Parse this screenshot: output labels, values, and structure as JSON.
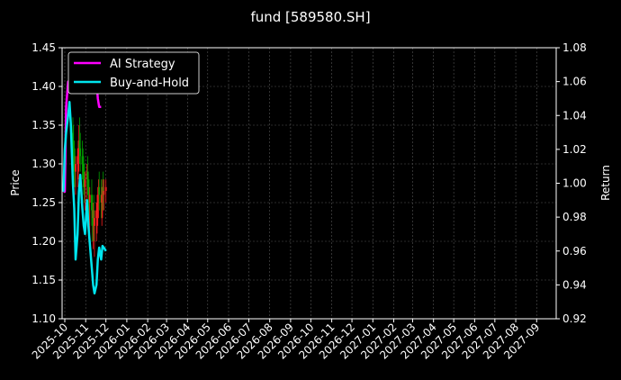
{
  "chart_data": {
    "type": "line",
    "title": "fund [589580.SH]",
    "ylabel": "Price",
    "y2label": "Return",
    "ylim": [
      1.1,
      1.45
    ],
    "y2lim": [
      0.92,
      1.08
    ],
    "xlim": [
      "2025-09-27",
      "2027-09-30"
    ],
    "grid": true,
    "legend_position": "top-left",
    "yticks": [
      "1.10",
      "1.15",
      "1.20",
      "1.25",
      "1.30",
      "1.35",
      "1.40",
      "1.45"
    ],
    "y2ticks": [
      "0.92",
      "0.94",
      "0.96",
      "0.98",
      "1.00",
      "1.02",
      "1.04",
      "1.06",
      "1.08"
    ],
    "xticks": [
      "2025-10",
      "2025-11",
      "2025-12",
      "2026-01",
      "2026-02",
      "2026-03",
      "2026-04",
      "2026-05",
      "2026-06",
      "2026-07",
      "2026-08",
      "2026-09",
      "2026-10",
      "2026-11",
      "2026-12",
      "2027-01",
      "2027-02",
      "2027-03",
      "2027-04",
      "2027-05",
      "2027-06",
      "2027-07",
      "2027-08",
      "2027-09"
    ],
    "series": [
      {
        "name": "AI Strategy",
        "color": "#ff00ff",
        "axis": "return",
        "x": [
          "2025-09-29",
          "2025-10-01",
          "2025-10-03",
          "2025-10-06",
          "2025-10-08",
          "2025-10-10",
          "2025-10-13",
          "2025-10-15",
          "2025-10-17",
          "2025-10-20",
          "2025-10-22",
          "2025-10-24",
          "2025-10-27",
          "2025-10-29",
          "2025-10-31",
          "2025-11-03",
          "2025-11-05",
          "2025-11-07",
          "2025-11-10",
          "2025-11-12",
          "2025-11-14",
          "2025-11-17",
          "2025-11-19",
          "2025-11-21",
          "2025-11-24"
        ],
        "values": [
          0.995,
          0.995,
          1.045,
          1.06,
          1.06,
          1.06,
          1.06,
          1.06,
          1.06,
          1.06,
          1.06,
          1.06,
          1.06,
          1.06,
          1.06,
          1.06,
          1.06,
          1.06,
          1.06,
          1.06,
          1.06,
          1.06,
          1.05,
          1.045,
          1.045
        ]
      },
      {
        "name": "Buy-and-Hold",
        "color": "#00e5ee",
        "axis": "return",
        "x": [
          "2025-09-29",
          "2025-10-01",
          "2025-10-03",
          "2025-10-06",
          "2025-10-08",
          "2025-10-10",
          "2025-10-13",
          "2025-10-15",
          "2025-10-17",
          "2025-10-20",
          "2025-10-22",
          "2025-10-24",
          "2025-10-27",
          "2025-10-29",
          "2025-10-31",
          "2025-11-03",
          "2025-11-05",
          "2025-11-07",
          "2025-11-10",
          "2025-11-12",
          "2025-11-14",
          "2025-11-17",
          "2025-11-19",
          "2025-11-21",
          "2025-11-24",
          "2025-11-26",
          "2025-11-28",
          "2025-12-01"
        ],
        "values": [
          0.995,
          1.02,
          1.03,
          1.04,
          1.048,
          1.035,
          1.0,
          0.985,
          0.955,
          0.97,
          0.995,
          1.005,
          0.985,
          0.975,
          0.97,
          0.99,
          0.975,
          0.965,
          0.95,
          0.94,
          0.935,
          0.94,
          0.955,
          0.962,
          0.955,
          0.963,
          0.962,
          0.96
        ]
      }
    ],
    "candles": {
      "axis": "price",
      "up_color": "#ff2020",
      "down_color": "#00a000",
      "x": [
        "2025-10-13",
        "2025-10-14",
        "2025-10-15",
        "2025-10-16",
        "2025-10-17",
        "2025-10-20",
        "2025-10-21",
        "2025-10-22",
        "2025-10-23",
        "2025-10-24",
        "2025-10-27",
        "2025-10-28",
        "2025-10-29",
        "2025-10-30",
        "2025-10-31",
        "2025-11-03",
        "2025-11-04",
        "2025-11-05",
        "2025-11-06",
        "2025-11-07",
        "2025-11-10",
        "2025-11-11",
        "2025-11-12",
        "2025-11-13",
        "2025-11-14",
        "2025-11-17",
        "2025-11-18",
        "2025-11-19",
        "2025-11-20",
        "2025-11-21",
        "2025-11-24",
        "2025-11-25",
        "2025-11-26",
        "2025-11-27",
        "2025-11-28",
        "2025-12-01"
      ],
      "open": [
        1.34,
        1.33,
        1.31,
        1.3,
        1.29,
        1.3,
        1.31,
        1.32,
        1.33,
        1.32,
        1.31,
        1.3,
        1.29,
        1.28,
        1.27,
        1.28,
        1.29,
        1.27,
        1.26,
        1.25,
        1.26,
        1.24,
        1.23,
        1.24,
        1.22,
        1.23,
        1.24,
        1.25,
        1.26,
        1.27,
        1.26,
        1.25,
        1.26,
        1.27,
        1.26,
        1.265
      ],
      "high": [
        1.36,
        1.35,
        1.33,
        1.32,
        1.31,
        1.32,
        1.33,
        1.35,
        1.36,
        1.34,
        1.33,
        1.32,
        1.31,
        1.3,
        1.29,
        1.3,
        1.31,
        1.29,
        1.28,
        1.27,
        1.28,
        1.26,
        1.25,
        1.26,
        1.24,
        1.25,
        1.26,
        1.27,
        1.28,
        1.29,
        1.28,
        1.27,
        1.28,
        1.29,
        1.28,
        1.28
      ],
      "low": [
        1.3,
        1.29,
        1.27,
        1.27,
        1.26,
        1.27,
        1.28,
        1.29,
        1.3,
        1.29,
        1.28,
        1.27,
        1.26,
        1.25,
        1.24,
        1.25,
        1.26,
        1.24,
        1.22,
        1.21,
        1.22,
        1.2,
        1.19,
        1.2,
        1.18,
        1.2,
        1.21,
        1.22,
        1.23,
        1.24,
        1.23,
        1.22,
        1.23,
        1.24,
        1.24,
        1.25
      ],
      "close": [
        1.33,
        1.31,
        1.3,
        1.29,
        1.3,
        1.31,
        1.32,
        1.33,
        1.32,
        1.31,
        1.3,
        1.29,
        1.28,
        1.27,
        1.28,
        1.29,
        1.27,
        1.26,
        1.25,
        1.26,
        1.24,
        1.23,
        1.24,
        1.22,
        1.23,
        1.24,
        1.25,
        1.26,
        1.27,
        1.26,
        1.25,
        1.26,
        1.27,
        1.26,
        1.265,
        1.27
      ]
    }
  }
}
